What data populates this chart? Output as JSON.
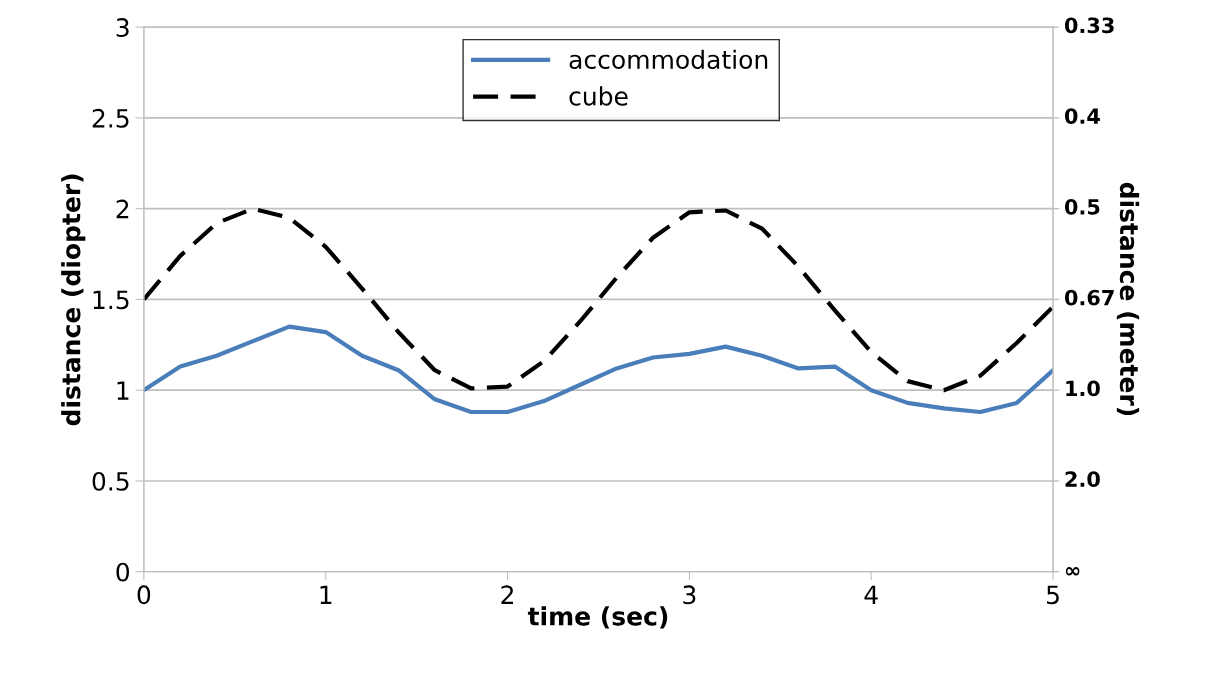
{
  "chart_data": {
    "type": "line",
    "xlabel": "time (sec)",
    "ylabel": "distance (diopter)",
    "y2label": "distance (meter)",
    "x": [
      0,
      0.2,
      0.4,
      0.6,
      0.8,
      1.0,
      1.2,
      1.4,
      1.6,
      1.8,
      2.0,
      2.2,
      2.4,
      2.6,
      2.8,
      3.0,
      3.2,
      3.4,
      3.6,
      3.8,
      4.0,
      4.2,
      4.4,
      4.6,
      4.8,
      5.0
    ],
    "series": [
      {
        "name": "accommodation",
        "color": "#4a7ebb",
        "line_style": "solid",
        "values": [
          1.0,
          1.13,
          1.19,
          1.27,
          1.35,
          1.32,
          1.19,
          1.11,
          0.95,
          0.88,
          0.88,
          0.94,
          1.03,
          1.12,
          1.18,
          1.2,
          1.24,
          1.19,
          1.12,
          1.13,
          1.0,
          0.93,
          0.9,
          0.88,
          0.93,
          1.11
        ]
      },
      {
        "name": "cube",
        "color": "#000000",
        "line_style": "dashed",
        "values": [
          1.5,
          1.74,
          1.92,
          2.0,
          1.95,
          1.79,
          1.56,
          1.32,
          1.11,
          1.01,
          1.02,
          1.16,
          1.38,
          1.62,
          1.84,
          1.98,
          1.99,
          1.89,
          1.68,
          1.44,
          1.21,
          1.05,
          1.0,
          1.08,
          1.26,
          1.46
        ]
      }
    ],
    "xlim": [
      0,
      5
    ],
    "xticks": [
      0,
      1,
      2,
      3,
      4,
      5
    ],
    "ylim": [
      0,
      3
    ],
    "yticks": [
      0,
      0.5,
      1,
      1.5,
      2,
      2.5,
      3
    ],
    "annotations": [
      "0.33",
      "0.4",
      "0.5",
      "0.67",
      "1.0",
      "2.0",
      "∞"
    ],
    "grid": "y",
    "legend": "top",
    "marker": "none"
  }
}
